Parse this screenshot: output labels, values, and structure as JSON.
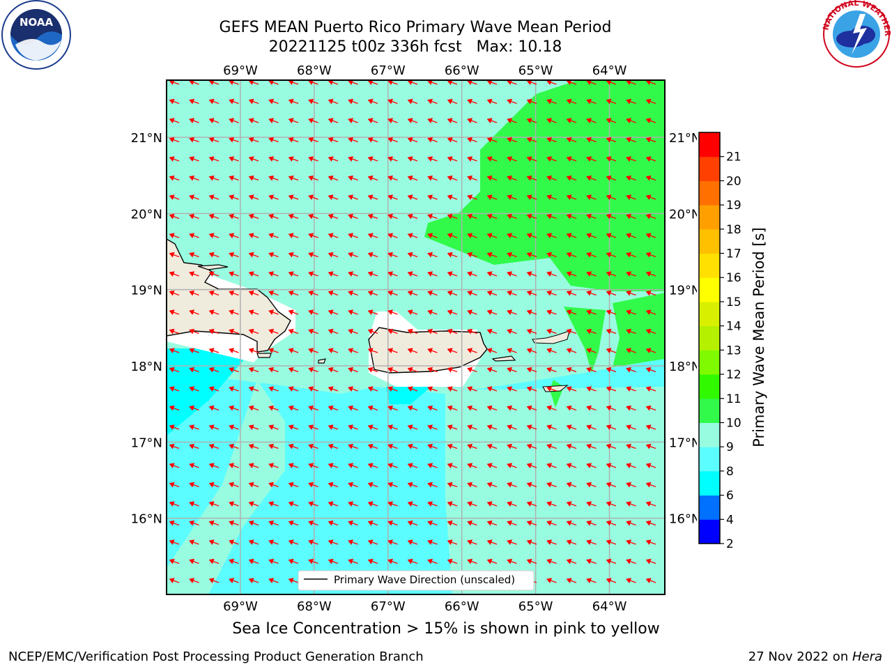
{
  "title": {
    "line1": "GEFS MEAN Puerto Rico Primary Wave Mean Period",
    "line2": "20221125 t00z 336h fcst   Max: 10.18"
  },
  "logos": {
    "noaa": {
      "icon": "noaa-logo",
      "text": "NOAA",
      "ring_text": "NATIONAL OCEANIC AND ATMOSPHERIC ADMINISTRATION · U.S. DEPARTMENT OF COMMERCE"
    },
    "nws": {
      "icon": "nws-logo",
      "ring_text": "NATIONAL WEATHER SERVICE"
    }
  },
  "map": {
    "lon_labels": [
      "69°W",
      "68°W",
      "67°W",
      "66°W",
      "65°W",
      "64°W"
    ],
    "lat_labels": [
      "21°N",
      "20°N",
      "19°N",
      "18°N",
      "17°N",
      "16°N"
    ],
    "lon_range": [
      -70,
      -63.25
    ],
    "lat_range": [
      15,
      21.75
    ],
    "legend_label": "Primary Wave Direction (unscaled)",
    "colors": {
      "land": "#efecde",
      "arrow": "#ff0000",
      "period_8_9": "#5cfdfe",
      "period_9_10": "#98fde0",
      "period_10_11": "#31fa4a",
      "period_6_8": "#00ffff"
    }
  },
  "colorbar": {
    "label": "Primary Wave Mean Period [s]",
    "ticks": [
      "2",
      "4",
      "6",
      "8",
      "9",
      "10",
      "11",
      "12",
      "13",
      "14",
      "15",
      "16",
      "17",
      "18",
      "19",
      "20",
      "21"
    ],
    "colors": [
      "#0000ff",
      "#0070ff",
      "#00ffff",
      "#5cfdfe",
      "#98fde0",
      "#31fa4a",
      "#31fa00",
      "#7ffa00",
      "#b4f000",
      "#d8f000",
      "#ffff00",
      "#ffe000",
      "#ffc000",
      "#ffa000",
      "#ff7000",
      "#ff4000",
      "#ff0000"
    ]
  },
  "caption": "Sea Ice Concentration > 15% is shown in pink to yellow",
  "footer": {
    "left": "NCEP/EMC/Verification Post Processing Product Generation Branch",
    "right_prefix": "27 Nov 2022 on ",
    "right_host": "Hera"
  }
}
